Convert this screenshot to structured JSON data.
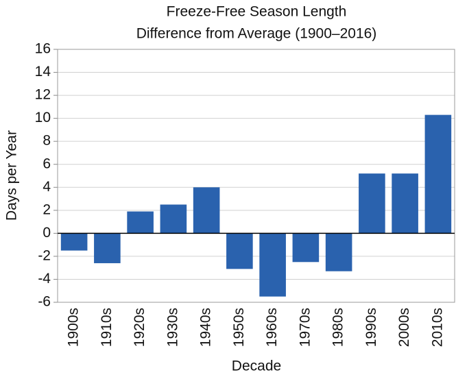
{
  "chart_data": {
    "type": "bar",
    "title": "Freeze-Free Season Length",
    "subtitle": "Difference from Average (1900–2016)",
    "x_label": "Decade",
    "y_label": "Days per Year",
    "categories": [
      "1900s",
      "1910s",
      "1920s",
      "1930s",
      "1940s",
      "1950s",
      "1960s",
      "1970s",
      "1980s",
      "1990s",
      "2000s",
      "2010s"
    ],
    "values": [
      -1.5,
      -2.6,
      1.9,
      2.5,
      4.0,
      -3.1,
      -5.5,
      -2.5,
      -3.3,
      5.2,
      5.2,
      10.3
    ],
    "color": "#2a62ae",
    "ylim": [
      -6,
      16
    ],
    "yticks": [
      -6,
      -4,
      -2,
      0,
      2,
      4,
      6,
      8,
      10,
      12,
      14,
      16
    ],
    "grid": true
  }
}
